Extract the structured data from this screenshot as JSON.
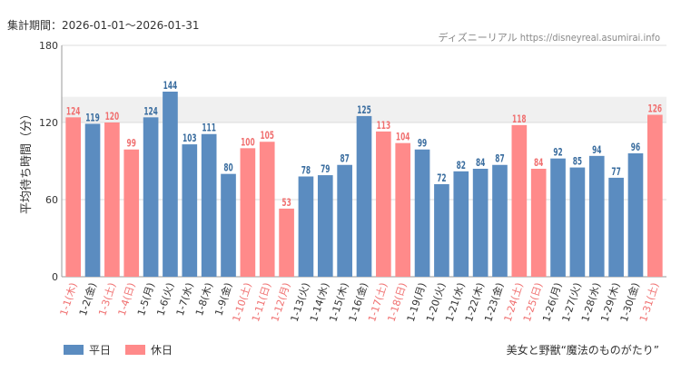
{
  "header": {
    "period": "集計期間：2026-01-01～2026-01-31",
    "source": "ディズニーリアル https://disneyreal.asumirai.info"
  },
  "footer": {
    "attraction": "美女と野獣“魔法のものがたり”"
  },
  "colors": {
    "weekday": "#5b8cc0",
    "holiday": "#ff8a8a",
    "holiday_text": "#f07070",
    "weekday_text": "#333333",
    "value_weekday": "#3a6d9f",
    "value_holiday": "#f07070",
    "grid": "#dddddd",
    "band": "#f0f0f0"
  },
  "chart_data": {
    "type": "bar",
    "ylabel": "平均待ち時間（分）",
    "ylim": [
      0,
      180
    ],
    "yticks": [
      0,
      60,
      120,
      180
    ],
    "legend": [
      {
        "name": "平日",
        "kind": "weekday"
      },
      {
        "name": "休日",
        "kind": "holiday"
      }
    ],
    "categories": [
      "1-1(木)",
      "1-2(金)",
      "1-3(土)",
      "1-4(日)",
      "1-5(月)",
      "1-6(火)",
      "1-7(水)",
      "1-8(木)",
      "1-9(金)",
      "1-10(土)",
      "1-11(日)",
      "1-12(月)",
      "1-13(火)",
      "1-14(水)",
      "1-15(木)",
      "1-16(金)",
      "1-17(土)",
      "1-18(日)",
      "1-19(月)",
      "1-20(火)",
      "1-21(水)",
      "1-22(木)",
      "1-23(金)",
      "1-24(土)",
      "1-25(日)",
      "1-26(月)",
      "1-27(火)",
      "1-28(水)",
      "1-29(木)",
      "1-30(金)",
      "1-31(土)"
    ],
    "values": [
      124,
      119,
      120,
      99,
      124,
      144,
      103,
      111,
      80,
      100,
      105,
      53,
      78,
      79,
      87,
      125,
      113,
      104,
      99,
      72,
      82,
      84,
      87,
      118,
      84,
      92,
      85,
      94,
      77,
      96,
      126
    ],
    "holiday": [
      true,
      false,
      true,
      true,
      false,
      false,
      false,
      false,
      false,
      true,
      true,
      true,
      false,
      false,
      false,
      false,
      true,
      true,
      false,
      false,
      false,
      false,
      false,
      true,
      true,
      false,
      false,
      false,
      false,
      false,
      true
    ]
  }
}
